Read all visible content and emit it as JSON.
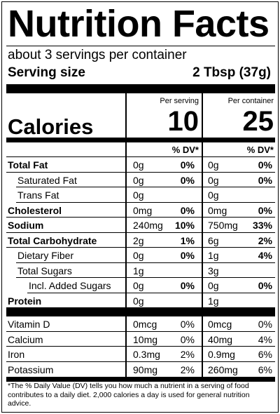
{
  "title": "Nutrition Facts",
  "servings_per_container": "about 3 servings per container",
  "serving_size": {
    "label": "Serving size",
    "value": "2 Tbsp (37g)"
  },
  "columns": {
    "per_serving": "Per serving",
    "per_container": "Per container",
    "dv_header": "% DV*"
  },
  "calories": {
    "label": "Calories",
    "per_serving": "10",
    "per_container": "25"
  },
  "nutrients": [
    {
      "label": "Total Fat",
      "bold": true,
      "indent": 0,
      "amt1": "0g",
      "dv1": "0%",
      "amt2": "0g",
      "dv2": "0%"
    },
    {
      "label": "Saturated Fat",
      "bold": false,
      "indent": 1,
      "amt1": "0g",
      "dv1": "0%",
      "amt2": "0g",
      "dv2": "0%"
    },
    {
      "label": "Trans Fat",
      "bold": false,
      "indent": 1,
      "amt1": "0g",
      "dv1": "",
      "amt2": "0g",
      "dv2": ""
    },
    {
      "label": "Cholesterol",
      "bold": true,
      "indent": 0,
      "amt1": "0mg",
      "dv1": "0%",
      "amt2": "0mg",
      "dv2": "0%"
    },
    {
      "label": "Sodium",
      "bold": true,
      "indent": 0,
      "amt1": "240mg",
      "dv1": "10%",
      "amt2": "750mg",
      "dv2": "33%"
    },
    {
      "label": "Total Carbohydrate",
      "bold": true,
      "indent": 0,
      "amt1": "2g",
      "dv1": "1%",
      "amt2": "6g",
      "dv2": "2%"
    },
    {
      "label": "Dietary Fiber",
      "bold": false,
      "indent": 1,
      "amt1": "0g",
      "dv1": "0%",
      "amt2": "1g",
      "dv2": "4%"
    },
    {
      "label": "Total Sugars",
      "bold": false,
      "indent": 1,
      "amt1": "1g",
      "dv1": "",
      "amt2": "3g",
      "dv2": ""
    },
    {
      "label": "Incl. Added Sugars",
      "bold": false,
      "indent": 2,
      "amt1": "0g",
      "dv1": "0%",
      "amt2": "0g",
      "dv2": "0%"
    },
    {
      "label": "Protein",
      "bold": true,
      "indent": 0,
      "amt1": "0g",
      "dv1": "",
      "amt2": "1g",
      "dv2": ""
    }
  ],
  "vitamins": [
    {
      "label": "Vitamin D",
      "amt1": "0mcg",
      "dv1": "0%",
      "amt2": "0mcg",
      "dv2": "0%"
    },
    {
      "label": "Calcium",
      "amt1": "10mg",
      "dv1": "0%",
      "amt2": "40mg",
      "dv2": "4%"
    },
    {
      "label": "Iron",
      "amt1": "0.3mg",
      "dv1": "2%",
      "amt2": "0.9mg",
      "dv2": "6%"
    },
    {
      "label": "Potassium",
      "amt1": "90mg",
      "dv1": "2%",
      "amt2": "260mg",
      "dv2": "6%"
    }
  ],
  "footnote": "*The % Daily Value (DV) tells you how much a nutrient in a serving of food contributes to a daily diet. 2,000 calories a day is used for general nutrition advice."
}
